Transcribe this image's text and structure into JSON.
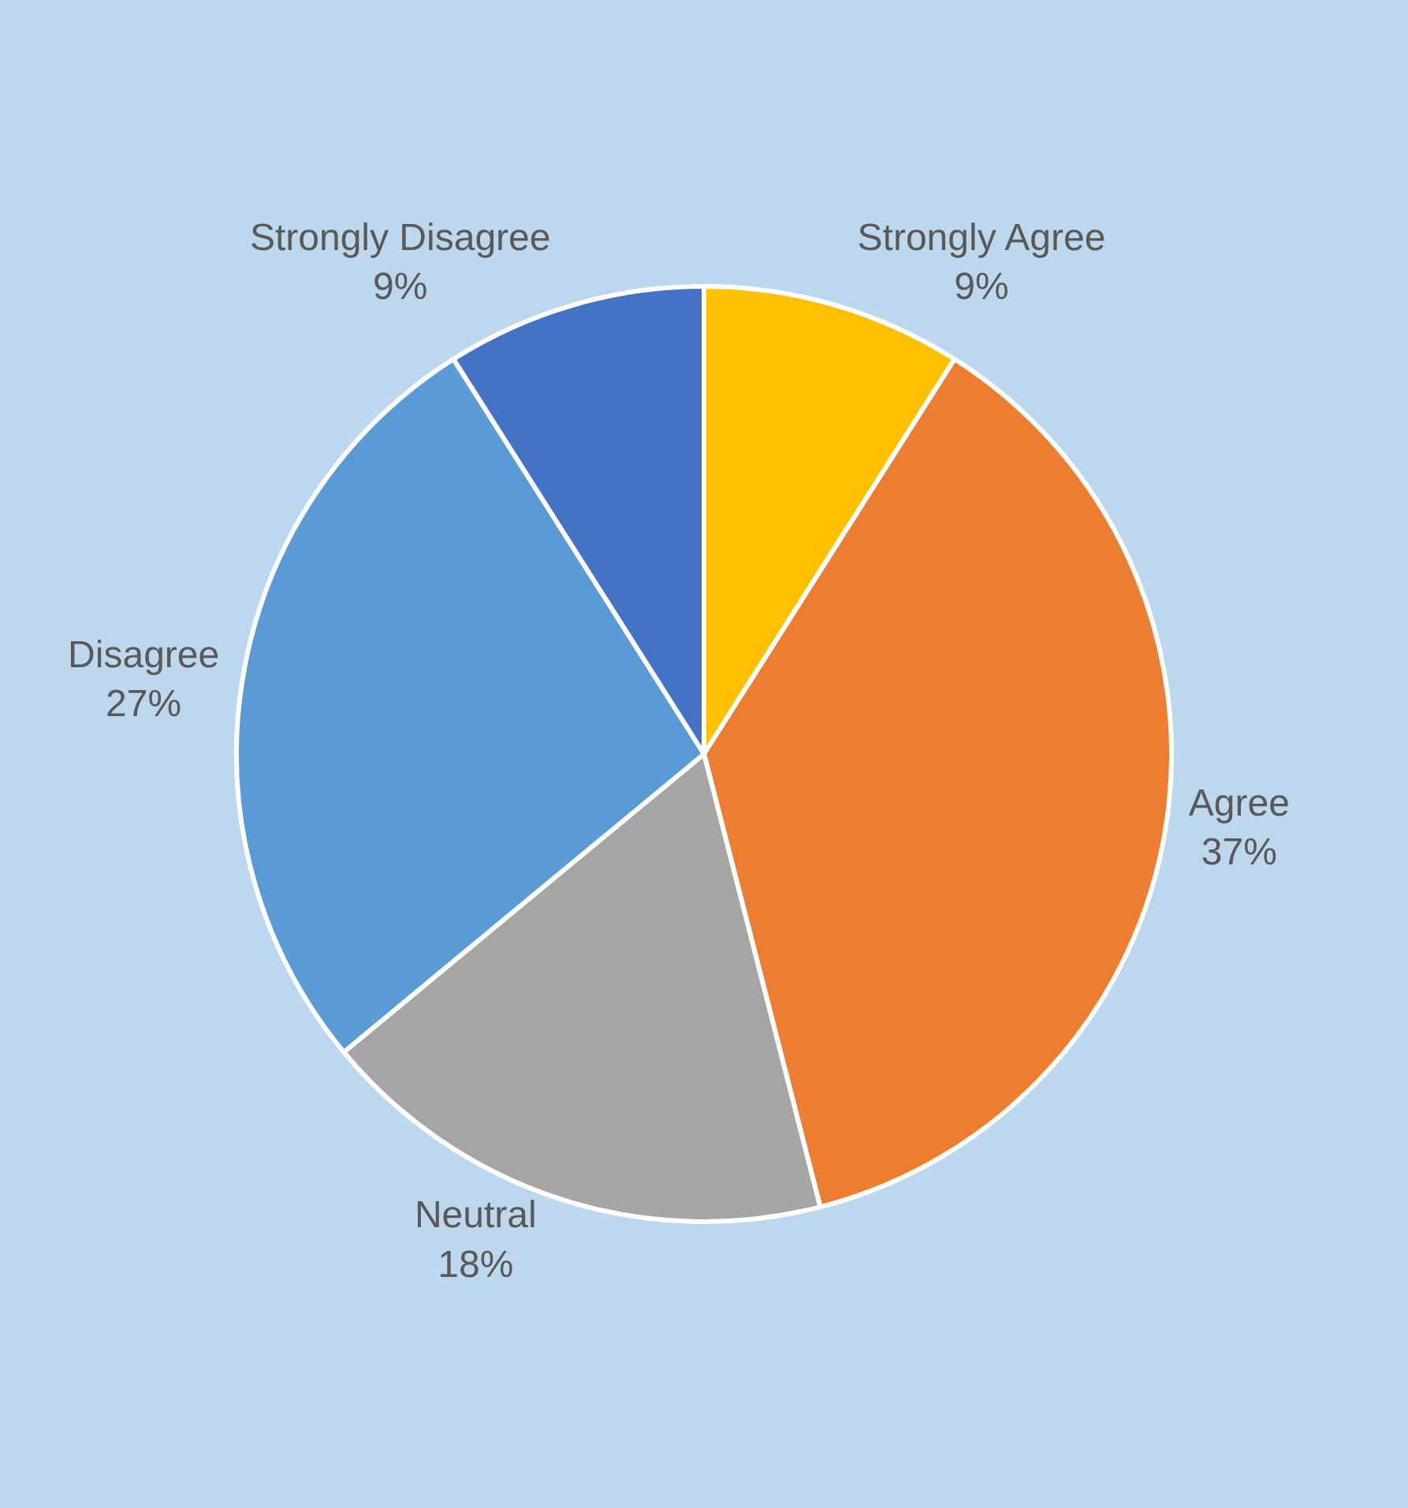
{
  "chart_data": {
    "type": "pie",
    "categories": [
      "Strongly Agree",
      "Agree",
      "Neutral",
      "Disagree",
      "Strongly Disagree"
    ],
    "values": [
      9,
      37,
      18,
      27,
      9
    ],
    "value_labels": [
      "9%",
      "37%",
      "18%",
      "27%",
      "9%"
    ],
    "colors": [
      "#ffc000",
      "#ed7d31",
      "#a5a5a5",
      "#5b9bd5",
      "#4472c4"
    ],
    "legend": false
  }
}
